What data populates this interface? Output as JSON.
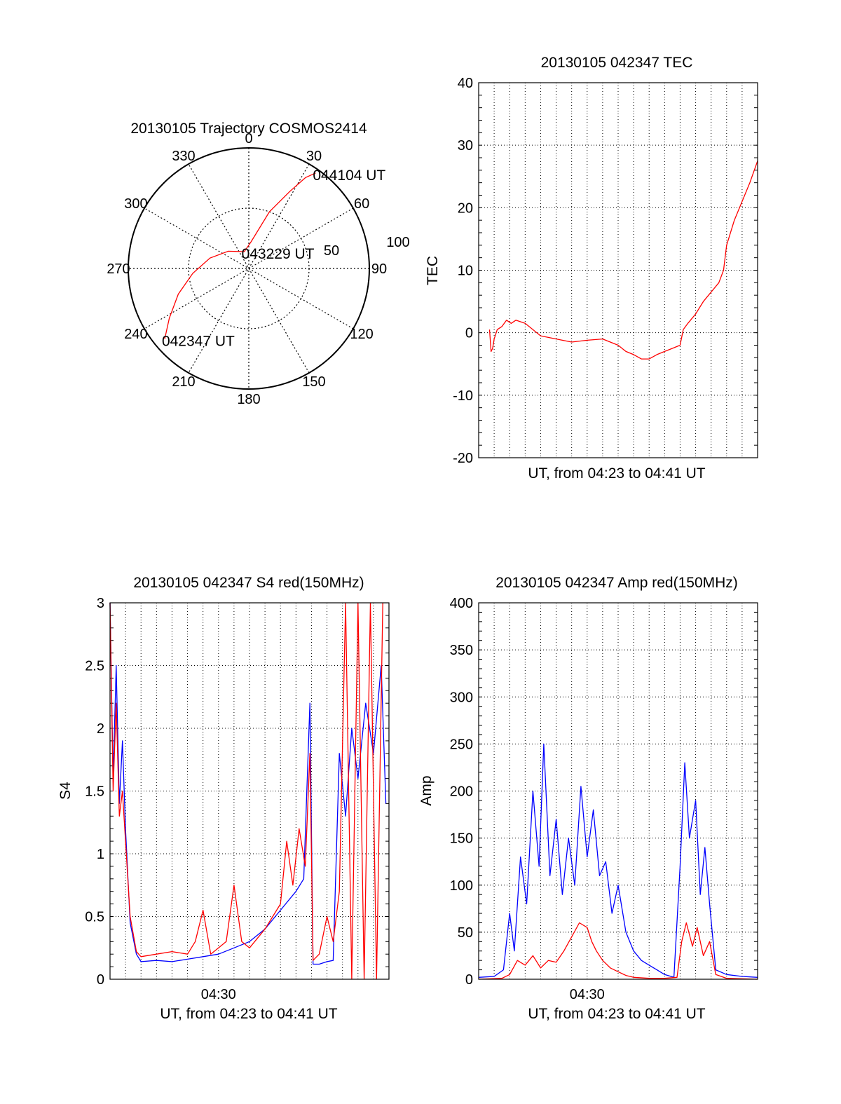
{
  "chart_data": [
    {
      "type": "scatter",
      "subtype": "polar",
      "title": "20130105 Trajectory COSMOS2414",
      "azimuth_labels": [
        "0",
        "30",
        "60",
        "90",
        "120",
        "150",
        "180",
        "210",
        "240",
        "270",
        "300",
        "330"
      ],
      "radius_labels": [
        "50",
        "100"
      ],
      "radius_range": [
        0,
        100
      ],
      "grid": true,
      "series": [
        {
          "color": "#ff0000",
          "points_az_el": [
            [
              230,
              8
            ],
            [
              238,
              20
            ],
            [
              250,
              34
            ],
            [
              265,
              48
            ],
            [
              285,
              60
            ],
            [
              310,
              70
            ],
            [
              345,
              77
            ],
            [
              5,
              70
            ],
            [
              20,
              45
            ],
            [
              28,
              25
            ],
            [
              32,
              10
            ],
            [
              35,
              3
            ]
          ]
        }
      ],
      "annotations": [
        {
          "text": "044104 UT",
          "az": 35,
          "el": 3
        },
        {
          "text": "043229 UT",
          "az": 345,
          "el": 77
        },
        {
          "text": "042347 UT",
          "az": 230,
          "el": 8
        }
      ]
    },
    {
      "type": "line",
      "title": "20130105 042347 TEC",
      "xlabel": "UT, from 04:23 to 04:41 UT",
      "ylabel": "TEC",
      "xlim": [
        0,
        18
      ],
      "ylim": [
        -20,
        40
      ],
      "yticks": [
        "-20",
        "-10",
        "0",
        "10",
        "20",
        "30",
        "40"
      ],
      "grid": true,
      "series": [
        {
          "color": "#ff0000",
          "x": [
            0.7,
            0.8,
            0.9,
            1.0,
            1.2,
            1.5,
            1.8,
            2.1,
            2.4,
            3.0,
            4.0,
            5.0,
            6.0,
            7.0,
            8.0,
            9.0,
            9.5,
            10.0,
            10.5,
            11.0,
            11.5,
            12.0,
            12.5,
            13.0,
            13.2,
            13.5,
            14.0,
            14.5,
            15.0,
            15.5,
            15.8,
            16.0,
            16.5,
            17.0,
            17.5,
            18.0
          ],
          "y": [
            0.5,
            -3.0,
            -2.5,
            -1.0,
            0.5,
            1.0,
            2.0,
            1.5,
            2.0,
            1.5,
            -0.5,
            -1.0,
            -1.5,
            -1.2,
            -1.0,
            -2.0,
            -3.0,
            -3.5,
            -4.2,
            -4.2,
            -3.5,
            -3.0,
            -2.5,
            -2.0,
            0.5,
            1.5,
            3.0,
            5.0,
            6.5,
            8.0,
            10.0,
            14.0,
            18.0,
            21.0,
            24.0,
            27.5
          ]
        }
      ]
    },
    {
      "type": "line",
      "title": "20130105 042347 S4 red(150MHz)",
      "xlabel": "UT, from 04:23 to 04:41 UT",
      "ylabel": "S4",
      "xtick_labels": [
        {
          "x": 7,
          "label": "04:30"
        }
      ],
      "xlim": [
        0,
        18
      ],
      "ylim": [
        0,
        3
      ],
      "yticks": [
        "0",
        "0.5",
        "1",
        "1.5",
        "2",
        "2.5",
        "3"
      ],
      "grid": true,
      "series": [
        {
          "color": "#0000ff",
          "x": [
            0.0,
            0.2,
            0.4,
            0.6,
            0.8,
            1.0,
            1.3,
            1.7,
            2.0,
            3.0,
            4.0,
            5.0,
            6.0,
            7.0,
            8.0,
            9.0,
            10.0,
            11.0,
            12.0,
            12.5,
            12.9,
            13.1,
            13.5,
            14.0,
            14.4,
            14.8,
            15.2,
            15.6,
            16.0,
            16.5,
            17.0,
            17.5,
            17.8
          ],
          "y": [
            3.0,
            1.6,
            2.5,
            1.4,
            1.9,
            1.2,
            0.45,
            0.2,
            0.14,
            0.15,
            0.14,
            0.16,
            0.18,
            0.2,
            0.25,
            0.3,
            0.4,
            0.55,
            0.7,
            0.8,
            2.2,
            0.12,
            0.12,
            0.14,
            0.15,
            1.8,
            1.3,
            2.0,
            1.6,
            2.2,
            1.8,
            2.5,
            1.4
          ]
        },
        {
          "color": "#ff0000",
          "x": [
            0.0,
            0.2,
            0.4,
            0.6,
            0.8,
            1.0,
            1.3,
            1.7,
            2.0,
            3.0,
            4.0,
            5.0,
            5.5,
            6.0,
            6.5,
            7.0,
            7.5,
            8.0,
            8.5,
            9.0,
            10.0,
            11.0,
            11.4,
            11.8,
            12.2,
            12.6,
            12.9,
            13.1,
            13.5,
            14.0,
            14.4,
            14.8,
            15.2,
            15.6,
            16.0,
            16.4,
            16.8,
            17.2,
            17.6
          ],
          "y": [
            3.0,
            1.5,
            2.2,
            1.3,
            1.5,
            1.1,
            0.5,
            0.22,
            0.18,
            0.2,
            0.22,
            0.2,
            0.3,
            0.55,
            0.2,
            0.25,
            0.3,
            0.75,
            0.3,
            0.25,
            0.4,
            0.6,
            1.1,
            0.75,
            1.2,
            0.9,
            1.8,
            0.15,
            0.2,
            0.5,
            0.3,
            0.7,
            3.0,
            0.0,
            3.0,
            0.0,
            3.0,
            0.0,
            3.0
          ]
        }
      ]
    },
    {
      "type": "line",
      "title": "20130105 042347 Amp red(150MHz)",
      "xlabel": "UT, from 04:23 to 04:41 UT",
      "ylabel": "Amp",
      "xtick_labels": [
        {
          "x": 7,
          "label": "04:30"
        }
      ],
      "xlim": [
        0,
        18
      ],
      "ylim": [
        0,
        400
      ],
      "yticks": [
        "0",
        "50",
        "100",
        "150",
        "200",
        "250",
        "300",
        "350",
        "400"
      ],
      "grid": true,
      "series": [
        {
          "color": "#0000ff",
          "x": [
            0.0,
            1.0,
            1.6,
            2.0,
            2.3,
            2.7,
            3.1,
            3.5,
            3.9,
            4.2,
            4.6,
            5.0,
            5.4,
            5.8,
            6.2,
            6.6,
            7.0,
            7.4,
            7.8,
            8.2,
            8.6,
            9.0,
            9.5,
            10.0,
            10.5,
            11.0,
            11.5,
            12.0,
            12.6,
            13.0,
            13.3,
            13.6,
            14.0,
            14.3,
            14.6,
            14.9,
            15.3,
            16.0,
            17.0,
            18.0
          ],
          "y": [
            2,
            3,
            10,
            70,
            30,
            130,
            80,
            200,
            120,
            250,
            110,
            170,
            90,
            150,
            100,
            205,
            130,
            180,
            110,
            125,
            70,
            100,
            50,
            30,
            20,
            15,
            10,
            5,
            2,
            120,
            230,
            150,
            190,
            90,
            140,
            80,
            10,
            5,
            3,
            2
          ]
        },
        {
          "color": "#ff0000",
          "x": [
            0.0,
            1.5,
            2.0,
            2.5,
            3.0,
            3.5,
            4.0,
            4.5,
            5.0,
            5.5,
            6.0,
            6.5,
            7.0,
            7.3,
            7.6,
            8.0,
            8.5,
            9.0,
            9.5,
            10.0,
            11.0,
            12.0,
            12.8,
            13.1,
            13.4,
            13.8,
            14.1,
            14.5,
            14.9,
            15.3,
            16.0,
            18.0
          ],
          "y": [
            0,
            1,
            5,
            20,
            15,
            25,
            12,
            20,
            18,
            30,
            45,
            60,
            55,
            40,
            30,
            20,
            12,
            8,
            4,
            2,
            1,
            1,
            2,
            40,
            60,
            35,
            55,
            25,
            40,
            5,
            1,
            0
          ]
        }
      ]
    }
  ]
}
